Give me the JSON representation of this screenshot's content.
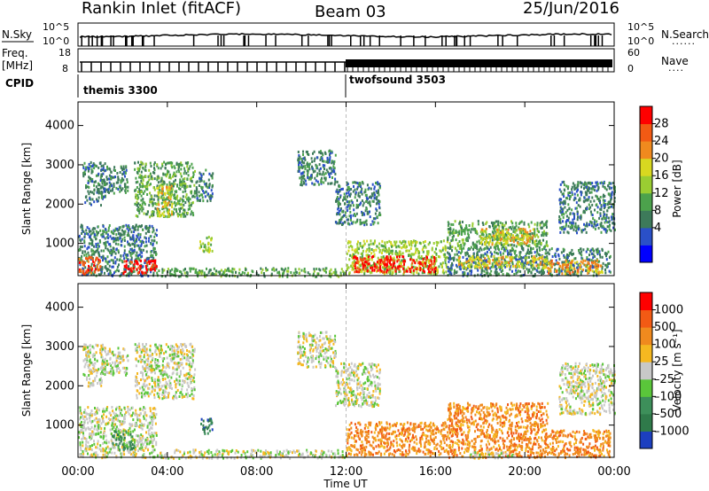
{
  "header": {
    "station": "Rankin Inlet (fitACF)",
    "beam": "Beam 03",
    "date": "25/Jun/2016"
  },
  "strip": {
    "nsky_label": "N.Sky",
    "nsky_ticks": [
      "10^5",
      "10^0"
    ],
    "nsearch_label": "N.Search",
    "nsearch_ticks": [
      "10^5",
      "10^0"
    ],
    "freq_label": "Freq.",
    "freq_unit": "[MHz]",
    "freq_ticks": [
      "18",
      "8"
    ],
    "nave_label": "Nave",
    "nave_ticks": [
      "60",
      "0"
    ],
    "cpid_label": "CPID",
    "programs": [
      {
        "name": "themis 3300",
        "start_hour": 0
      },
      {
        "name": "twofsound 3503",
        "start_hour": 12
      }
    ]
  },
  "chart_data": [
    {
      "type": "heatmap",
      "name": "power",
      "ylabel": "Slant Range [km]",
      "yticks": [
        "4000",
        "3000",
        "2000",
        "1000"
      ],
      "ylim": [
        180,
        4600
      ],
      "xlim": [
        0,
        24
      ],
      "colorbar": {
        "label": "Power [dB]",
        "ticks": [
          "28",
          "24",
          "20",
          "16",
          "12",
          "8",
          "4"
        ],
        "colors": [
          "#0000ff",
          "#2a50c8",
          "#3d7a5a",
          "#4ca24c",
          "#9acd32",
          "#d8d820",
          "#f08a1e",
          "#f25a14",
          "#ff0000"
        ]
      },
      "regions": [
        {
          "t0": 0.2,
          "t1": 1.2,
          "r0": 2000,
          "r1": 3100,
          "level": 2
        },
        {
          "t0": 1.0,
          "t1": 2.2,
          "r0": 2300,
          "r1": 3000,
          "level": 2
        },
        {
          "t0": 2.5,
          "t1": 5.2,
          "r0": 1700,
          "r1": 3100,
          "level": 3
        },
        {
          "t0": 3.5,
          "t1": 4.2,
          "r0": 1700,
          "r1": 2500,
          "level": 5
        },
        {
          "t0": 5.2,
          "t1": 6.0,
          "r0": 2100,
          "r1": 2900,
          "level": 2
        },
        {
          "t0": 5.4,
          "t1": 6.0,
          "r0": 800,
          "r1": 1200,
          "level": 4
        },
        {
          "t0": 0.0,
          "t1": 3.5,
          "r0": 200,
          "r1": 1500,
          "level": 2
        },
        {
          "t0": 0.0,
          "t1": 1.0,
          "r0": 250,
          "r1": 700,
          "level": 7
        },
        {
          "t0": 2.0,
          "t1": 3.5,
          "r0": 250,
          "r1": 600,
          "level": 8
        },
        {
          "t0": 9.8,
          "t1": 11.5,
          "r0": 2500,
          "r1": 3400,
          "level": 2
        },
        {
          "t0": 11.5,
          "t1": 13.5,
          "r0": 1500,
          "r1": 2600,
          "level": 2
        },
        {
          "t0": 3.5,
          "t1": 12.0,
          "r0": 180,
          "r1": 400,
          "level": 3
        },
        {
          "t0": 12.0,
          "t1": 16.5,
          "r0": 250,
          "r1": 1100,
          "level": 4
        },
        {
          "t0": 12.3,
          "t1": 16.0,
          "r0": 300,
          "r1": 700,
          "level": 8
        },
        {
          "t0": 16.5,
          "t1": 23.8,
          "r0": 200,
          "r1": 900,
          "level": 2
        },
        {
          "t0": 17.0,
          "t1": 21.0,
          "r0": 400,
          "r1": 700,
          "level": 5
        },
        {
          "t0": 21.0,
          "t1": 23.5,
          "r0": 250,
          "r1": 600,
          "level": 6
        },
        {
          "t0": 16.5,
          "t1": 21.0,
          "r0": 900,
          "r1": 1600,
          "level": 3
        },
        {
          "t0": 18.0,
          "t1": 20.5,
          "r0": 1000,
          "r1": 1400,
          "level": 5
        },
        {
          "t0": 21.5,
          "t1": 24.0,
          "r0": 1300,
          "r1": 2600,
          "level": 2
        }
      ]
    },
    {
      "type": "heatmap",
      "name": "velocity",
      "ylabel": "Slant Range [km]",
      "yticks": [
        "4000",
        "3000",
        "2000",
        "1000"
      ],
      "ylim": [
        180,
        4600
      ],
      "xlim": [
        0,
        24
      ],
      "xticks": [
        "00:00",
        "04:00",
        "08:00",
        "12:00",
        "16:00",
        "20:00",
        "00:00"
      ],
      "xlabel": "Time UT",
      "colorbar": {
        "label": "Velocity [m s⁻¹]",
        "ticks": [
          "1000",
          "500",
          "100",
          "25",
          "–25",
          "–100",
          "–500",
          "–1000"
        ],
        "colors": [
          "#1c3fbf",
          "#2f7a4a",
          "#3d8f5a",
          "#5ac63a",
          "#c8c8c8",
          "#f5b820",
          "#f08a1e",
          "#f25a14",
          "#ff0000"
        ]
      },
      "regions": [
        {
          "t0": 0.2,
          "t1": 1.2,
          "r0": 2000,
          "r1": 3100,
          "level": 4
        },
        {
          "t0": 1.0,
          "t1": 2.2,
          "r0": 2300,
          "r1": 3000,
          "level": 4
        },
        {
          "t0": 2.5,
          "t1": 5.2,
          "r0": 1700,
          "r1": 3100,
          "level": 4
        },
        {
          "t0": 5.4,
          "t1": 6.0,
          "r0": 800,
          "r1": 1200,
          "level": 1
        },
        {
          "t0": 0.0,
          "t1": 3.5,
          "r0": 200,
          "r1": 1500,
          "level": 4
        },
        {
          "t0": 1.5,
          "t1": 2.5,
          "r0": 400,
          "r1": 900,
          "level": 2
        },
        {
          "t0": 9.8,
          "t1": 11.5,
          "r0": 2500,
          "r1": 3400,
          "level": 4
        },
        {
          "t0": 11.5,
          "t1": 13.5,
          "r0": 1500,
          "r1": 2600,
          "level": 4
        },
        {
          "t0": 3.5,
          "t1": 12.0,
          "r0": 180,
          "r1": 400,
          "level": 4
        },
        {
          "t0": 12.0,
          "t1": 16.5,
          "r0": 250,
          "r1": 1100,
          "level": 6
        },
        {
          "t0": 16.5,
          "t1": 23.8,
          "r0": 200,
          "r1": 900,
          "level": 6
        },
        {
          "t0": 16.5,
          "t1": 21.0,
          "r0": 900,
          "r1": 1600,
          "level": 6
        },
        {
          "t0": 17.5,
          "t1": 19.5,
          "r0": 180,
          "r1": 350,
          "level": 4
        },
        {
          "t0": 21.5,
          "t1": 24.0,
          "r0": 1300,
          "r1": 2600,
          "level": 4
        }
      ]
    }
  ]
}
